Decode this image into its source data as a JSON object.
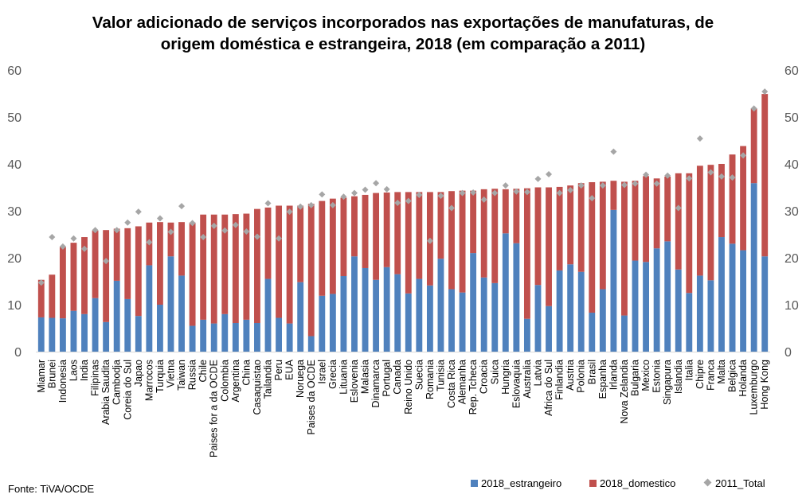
{
  "chart_data": {
    "type": "bar",
    "stacked": true,
    "title": "Valor adicionado de serviços incorporados nas exportações de manufaturas, de origem doméstica e estrangeira, 2018 (em comparação a 2011)",
    "title_lines": [
      "Valor adicionado de serviços incorporados nas exportações de manufaturas, de",
      "origem doméstica e estrangeira, 2018 (em comparação a 2011)"
    ],
    "source": "Fonte: TiVA/OCDE",
    "ylim": [
      0,
      60
    ],
    "yticks": [
      0,
      10,
      20,
      30,
      40,
      50,
      60
    ],
    "y_axis_both_sides": true,
    "grid": false,
    "legend_position": "bottom-right",
    "colors": {
      "estrangeiro": "#4F81BD",
      "domestico": "#C0504D",
      "total2011": "#A6A6A6"
    },
    "categories": [
      "Miamar",
      "Brunei",
      "Indonesia",
      "Laos",
      "India",
      "Filipinas",
      "Arabia Saudita",
      "Cambodja",
      "Coreia do Sul",
      "Japao",
      "Marrocos",
      "Turquia",
      "Vietna",
      "Taiwan",
      "Russia",
      "Chile",
      "Paises for a da OCDE",
      "Colombia",
      "Argentina",
      "China",
      "Casaquistao",
      "Tailandia",
      "Peru",
      "EUA",
      "Noruega",
      "Paises da OCDE",
      "Israel",
      "Grecia",
      "Lituania",
      "Eslovenia",
      "Malasia",
      "Dinamarca",
      "Portugal",
      "Canada",
      "Reino Unido",
      "Suecia",
      "Romania",
      "Tunisia",
      "Costa Rica",
      "Alemanha",
      "Rep. Tcheca",
      "Croacia",
      "Suica",
      "Hungria",
      "Eslovaquia",
      "Australia",
      "Latvia",
      "Africa do Sul",
      "Finlandia",
      "Austria",
      "Polonia",
      "Brasil",
      "Espanha",
      "Irlanda",
      "Nova Zelandia",
      "Bulgaria",
      "Mexico",
      "Estonia",
      "Singapura",
      "Islandia",
      "Italia",
      "Chipre",
      "Franca",
      "Malta",
      "Belgica",
      "Holanda",
      "Luxemburgo",
      "Hong Kong"
    ],
    "series": [
      {
        "name": "2018_estrangeiro",
        "kind": "bar",
        "values": [
          7.3,
          7.2,
          7.1,
          8.7,
          8.0,
          11.4,
          6.3,
          15.1,
          11.2,
          7.6,
          18.4,
          10.0,
          20.3,
          16.2,
          5.5,
          6.8,
          6.0,
          8.0,
          6.1,
          6.8,
          6.1,
          15.5,
          7.2,
          6.0,
          14.8,
          3.3,
          11.9,
          12.3,
          16.1,
          20.3,
          17.8,
          15.3,
          18.0,
          16.5,
          12.4,
          15.5,
          14.1,
          19.8,
          13.3,
          12.6,
          21.0,
          15.8,
          14.6,
          25.2,
          23.1,
          7.0,
          14.2,
          9.7,
          17.3,
          18.6,
          17.0,
          8.3,
          13.3,
          30.2,
          7.7,
          19.4,
          19.1,
          22.0,
          23.5,
          17.5,
          12.5,
          16.2,
          15.2,
          24.4,
          23.0,
          21.6,
          35.9,
          20.3
        ]
      },
      {
        "name": "2018_domestico",
        "kind": "bar",
        "values": [
          8.0,
          9.2,
          15.2,
          14.5,
          16.4,
          14.4,
          19.6,
          11.1,
          15.1,
          19.1,
          9.1,
          17.6,
          7.2,
          11.4,
          22.0,
          22.4,
          23.2,
          21.2,
          23.2,
          22.6,
          24.3,
          15.2,
          23.9,
          25.1,
          16.3,
          28.2,
          20.2,
          20.3,
          16.7,
          12.8,
          15.6,
          18.5,
          15.9,
          17.5,
          21.6,
          18.5,
          19.9,
          14.2,
          20.9,
          21.7,
          13.3,
          18.8,
          20.1,
          9.4,
          11.6,
          27.8,
          20.8,
          25.3,
          17.8,
          16.8,
          18.9,
          27.8,
          22.9,
          6.2,
          28.5,
          17.0,
          18.3,
          14.9,
          13.8,
          20.5,
          25.5,
          23.4,
          24.6,
          15.6,
          19.0,
          22.2,
          15.9,
          34.6
        ]
      },
      {
        "name": "2011_Total",
        "kind": "marker",
        "values": [
          14.7,
          24.4,
          22.4,
          24.1,
          21.9,
          25.9,
          19.3,
          25.9,
          27.5,
          29.8,
          23.3,
          28.4,
          25.5,
          31.0,
          27.4,
          24.4,
          26.8,
          25.8,
          27.0,
          25.6,
          24.5,
          31.6,
          24.1,
          29.8,
          30.9,
          31.2,
          33.5,
          31.2,
          33.0,
          33.8,
          34.5,
          35.9,
          34.6,
          31.7,
          32.1,
          33.4,
          23.6,
          33.2,
          30.6,
          33.8,
          33.9,
          32.4,
          33.8,
          35.4,
          34.1,
          34.0,
          36.8,
          37.8,
          33.8,
          34.4,
          35.4,
          32.7,
          35.4,
          42.6,
          35.5,
          35.8,
          37.7,
          35.8,
          37.5,
          30.6,
          36.9,
          45.4,
          38.2,
          37.3,
          37.1,
          41.8,
          51.8,
          55.4
        ]
      }
    ]
  }
}
